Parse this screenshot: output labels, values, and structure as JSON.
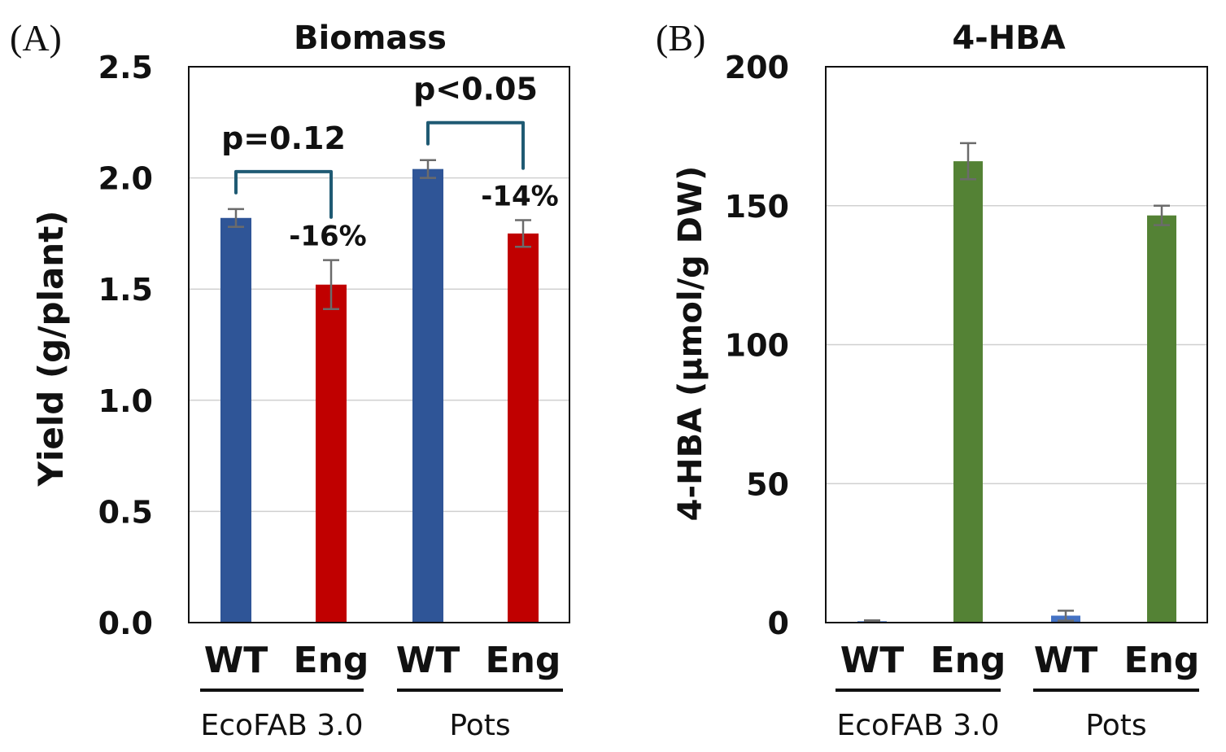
{
  "chart_data": [
    {
      "panel_label": "(A)",
      "type": "bar",
      "title": "Biomass",
      "ylabel": "Yield (g/plant)",
      "xlabel": "",
      "ylim": [
        0,
        2.5
      ],
      "yticks": [
        "0.0",
        "0.5",
        "1.0",
        "1.5",
        "2.0",
        "2.5"
      ],
      "grid": true,
      "categories": [
        "WT",
        "Eng",
        "WT",
        "Eng"
      ],
      "groups": [
        {
          "label": "EcoFAB 3.0",
          "span": [
            0,
            1
          ]
        },
        {
          "label": "Pots",
          "span": [
            2,
            3
          ]
        }
      ],
      "values": [
        1.82,
        1.52,
        2.04,
        1.75
      ],
      "errors": [
        0.04,
        0.11,
        0.04,
        0.06
      ],
      "colors": [
        "#2f5597",
        "#c00000",
        "#2f5597",
        "#c00000"
      ],
      "bar_labels": [
        "",
        "-16%",
        "",
        "-14%"
      ],
      "brackets": [
        {
          "label": "p=0.12",
          "from": 0,
          "to": 1
        },
        {
          "label": "p<0.05",
          "from": 2,
          "to": 3
        }
      ],
      "bracket_color": "#1f5a73"
    },
    {
      "panel_label": "(B)",
      "type": "bar",
      "title": "4-HBA",
      "ylabel": "4-HBA (μmol/g DW)",
      "xlabel": "",
      "ylim": [
        0,
        200
      ],
      "yticks": [
        "0",
        "50",
        "100",
        "150",
        "200"
      ],
      "grid": true,
      "categories": [
        "WT",
        "Eng",
        "WT",
        "Eng"
      ],
      "groups": [
        {
          "label": "EcoFAB 3.0",
          "span": [
            0,
            1
          ]
        },
        {
          "label": "Pots",
          "span": [
            2,
            3
          ]
        }
      ],
      "values": [
        0.5,
        166,
        2.5,
        146.5
      ],
      "errors": [
        0.3,
        6.5,
        1.8,
        3.5
      ],
      "colors": [
        "#4472c4",
        "#548235",
        "#4472c4",
        "#548235"
      ],
      "bar_labels": [
        "",
        "",
        "",
        ""
      ],
      "brackets": []
    }
  ]
}
